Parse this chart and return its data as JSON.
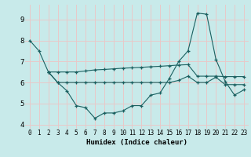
{
  "xlabel": "Humidex (Indice chaleur)",
  "bg_color": "#c8eaea",
  "grid_color": "#e8c8c8",
  "line_color": "#1a6060",
  "xlim_min": -0.5,
  "xlim_max": 23.5,
  "ylim_min": 3.8,
  "ylim_max": 9.7,
  "yticks": [
    4,
    5,
    6,
    7,
    8,
    9
  ],
  "xticks": [
    0,
    1,
    2,
    3,
    4,
    5,
    6,
    7,
    8,
    9,
    10,
    11,
    12,
    13,
    14,
    15,
    16,
    17,
    18,
    19,
    20,
    21,
    22,
    23
  ],
  "line1_x": [
    0,
    1,
    2,
    3,
    4,
    5,
    6,
    7,
    8,
    9,
    10,
    11,
    12,
    13,
    14,
    15,
    16,
    17,
    18,
    19,
    20,
    21,
    22,
    23
  ],
  "line1_y": [
    8.0,
    7.5,
    6.5,
    6.0,
    5.6,
    4.9,
    4.8,
    4.3,
    4.55,
    4.55,
    4.65,
    4.9,
    4.9,
    5.4,
    5.5,
    6.2,
    7.0,
    7.5,
    9.3,
    9.25,
    7.1,
    6.05,
    5.4,
    5.65
  ],
  "line2_x": [
    2,
    3,
    4,
    5,
    6,
    7,
    8,
    9,
    10,
    11,
    12,
    13,
    14,
    15,
    16,
    17,
    18,
    19,
    20,
    21,
    22,
    23
  ],
  "line2_y": [
    6.5,
    6.5,
    6.5,
    6.5,
    6.55,
    6.6,
    6.62,
    6.65,
    6.68,
    6.7,
    6.72,
    6.75,
    6.77,
    6.8,
    6.83,
    6.85,
    6.3,
    6.3,
    6.3,
    6.28,
    6.28,
    6.28
  ],
  "line3_x": [
    2,
    3,
    4,
    5,
    6,
    7,
    8,
    9,
    10,
    11,
    12,
    13,
    14,
    15,
    16,
    17,
    18,
    19,
    20,
    21,
    22,
    23
  ],
  "line3_y": [
    6.5,
    6.0,
    6.0,
    6.0,
    6.0,
    6.0,
    6.0,
    6.0,
    6.0,
    6.0,
    6.0,
    6.0,
    6.0,
    6.0,
    6.1,
    6.3,
    6.0,
    6.0,
    6.25,
    5.9,
    5.9,
    5.9
  ]
}
